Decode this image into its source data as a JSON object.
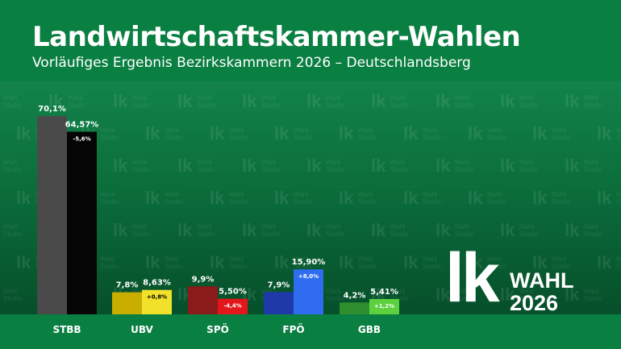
{
  "header": {
    "title": "Landwirtschaftskammer-Wahlen",
    "subtitle": "Vorläufiges Ergebnis Bezirkskammern 2026 – Deutschlandsberg"
  },
  "logo": {
    "mark": "lk",
    "line1": "WAHL",
    "line2": "2026"
  },
  "watermark": {
    "mark": "lk",
    "line1": "Wahl",
    "line2": "Studio"
  },
  "chart_data": {
    "type": "bar",
    "categories": [
      "STBB",
      "UBV",
      "SPÖ",
      "FPÖ",
      "GBB"
    ],
    "series": [
      {
        "values": [
          70.1,
          7.8,
          9.9,
          7.9,
          4.2
        ],
        "labels": [
          "70,1%",
          "7,8%",
          "9,9%",
          "7,9%",
          "4,2%"
        ],
        "colors": [
          "#4a4a4a",
          "#c9ae00",
          "#8b1a1a",
          "#1f3aa8",
          "#2e8f2e"
        ]
      },
      {
        "values": [
          64.57,
          8.63,
          5.5,
          15.9,
          5.41
        ],
        "labels": [
          "64,57%",
          "8,63%",
          "5,50%",
          "15,90%",
          "5,41%"
        ],
        "changes": [
          "-5,6%",
          "+0,8%",
          "-4,4%",
          "+8,0%",
          "+1,2%"
        ],
        "colors": [
          "#050505",
          "#f2e12a",
          "#e3171b",
          "#2f6cf0",
          "#5bd13d"
        ],
        "change_text_colors": [
          "#ffffff",
          "#000000",
          "#ffffff",
          "#ffffff",
          "#ffffff"
        ]
      }
    ],
    "ylim": [
      0,
      70.1
    ],
    "grid": false,
    "legend": "none"
  }
}
